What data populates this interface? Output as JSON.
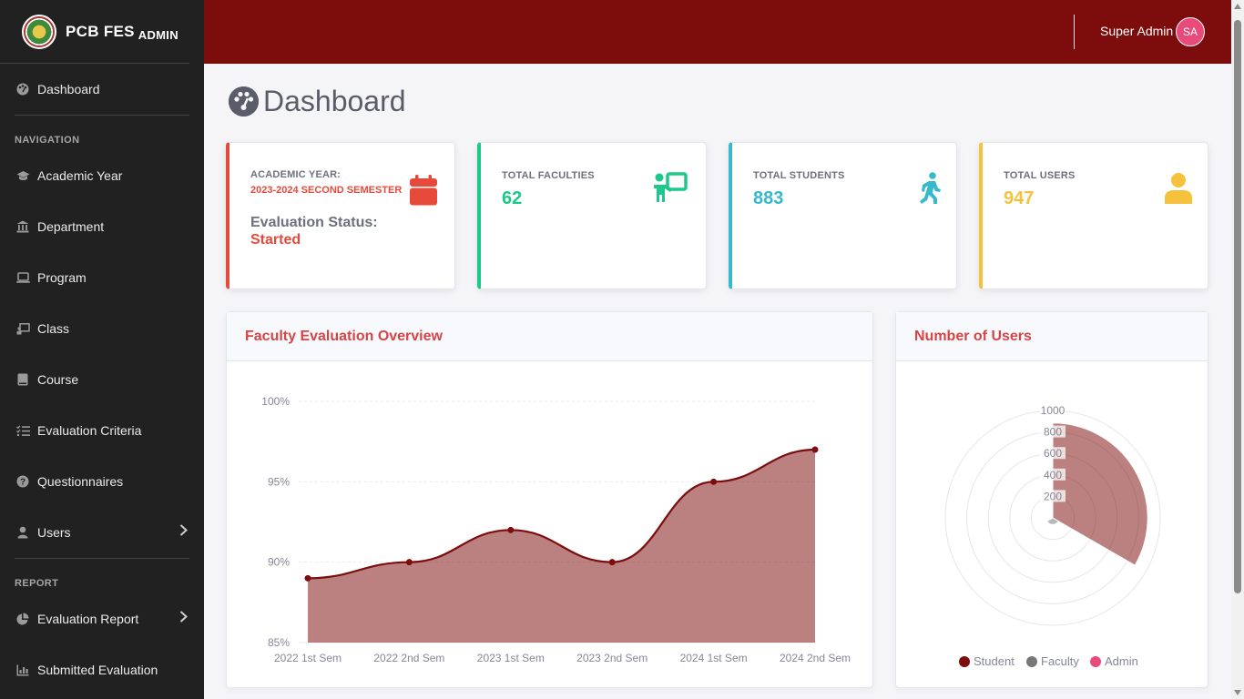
{
  "brand": {
    "name": "PCB FES",
    "suffix": "ADMIN"
  },
  "sidebar": {
    "dashboard": {
      "label": "Dashboard",
      "icon": "palette-gauge-icon"
    },
    "nav_heading": "NAVIGATION",
    "nav_items": [
      {
        "label": "Academic Year",
        "icon": "graduation-cap-icon"
      },
      {
        "label": "Department",
        "icon": "building-columns-icon"
      },
      {
        "label": "Program",
        "icon": "laptop-icon"
      },
      {
        "label": "Class",
        "icon": "chalkboard-icon"
      },
      {
        "label": "Course",
        "icon": "book-icon"
      },
      {
        "label": "Evaluation Criteria",
        "icon": "list-check-icon"
      },
      {
        "label": "Questionnaires",
        "icon": "question-circle-icon"
      },
      {
        "label": "Users",
        "icon": "user-icon"
      }
    ],
    "report_heading": "REPORT",
    "report_items": [
      {
        "label": "Evaluation Report",
        "icon": "chart-pie-icon"
      },
      {
        "label": "Submitted Evaluation",
        "icon": "chart-bar-icon"
      }
    ]
  },
  "topbar": {
    "user_name": "Super Admin",
    "avatar_initials": "SA"
  },
  "page": {
    "title": "Dashboard"
  },
  "cards": {
    "academic": {
      "label": "ACADEMIC YEAR:",
      "year": "2023-2024 SECOND SEMESTER",
      "status_label": "Evaluation Status:",
      "status_value": "Started",
      "accent": "#e74a3b"
    },
    "faculties": {
      "label": "TOTAL FACULTIES",
      "value": "62",
      "accent": "#1cc88a"
    },
    "students": {
      "label": "TOTAL STUDENTS",
      "value": "883",
      "accent": "#36b9cc"
    },
    "users": {
      "label": "TOTAL USERS",
      "value": "947",
      "accent": "#f6c23e"
    }
  },
  "panels": {
    "overview_title": "Faculty Evaluation Overview",
    "users_title": "Number of Users"
  },
  "chart_data": [
    {
      "type": "area",
      "categories": [
        "2022 1st Sem",
        "2022 2nd Sem",
        "2023 1st Sem",
        "2023 2nd Sem",
        "2024 1st Sem",
        "2024 2nd Sem"
      ],
      "values": [
        89,
        90,
        92,
        90,
        95,
        97
      ],
      "ylim": [
        85,
        100
      ],
      "yticks": [
        "100%",
        "95%",
        "90%",
        "85%"
      ],
      "grid": true,
      "color": "#7d0c0c"
    },
    {
      "type": "polarArea",
      "categories": [
        "Student",
        "Faculty",
        "Admin"
      ],
      "values": [
        883,
        62,
        2
      ],
      "rlim": [
        0,
        1000
      ],
      "rticks": [
        "1000",
        "800",
        "600",
        "400",
        "200"
      ],
      "colors": [
        "#7d0c0c",
        "#777777",
        "#e84a7a"
      ],
      "legend": "bottom"
    }
  ]
}
